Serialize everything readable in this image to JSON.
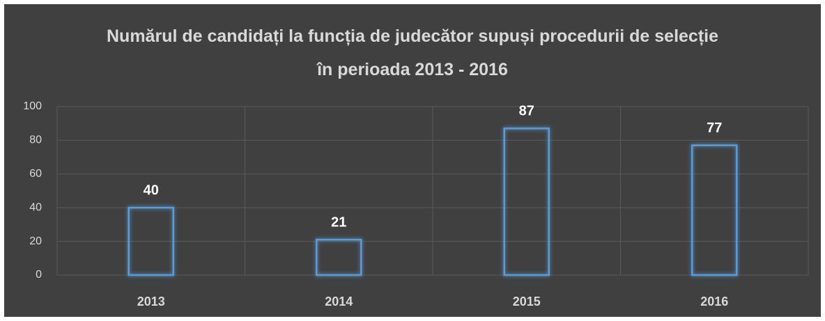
{
  "chart_data": {
    "type": "bar",
    "title": "Numărul de candidați la funcția de judecător supuși procedurii de selecție în perioada 2013 - 2016",
    "categories": [
      "2013",
      "2014",
      "2015",
      "2016"
    ],
    "values": [
      40,
      21,
      87,
      77
    ],
    "color": "#5b9bd5",
    "ylim": [
      0,
      100
    ],
    "yticks": [
      0,
      20,
      40,
      60,
      80,
      100
    ],
    "grid": true
  }
}
